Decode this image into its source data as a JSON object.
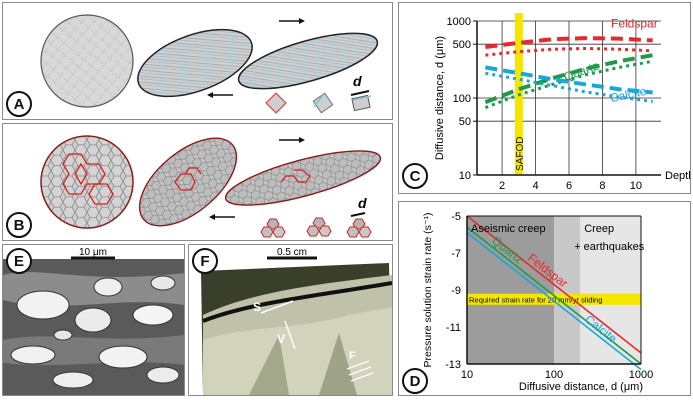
{
  "panels": {
    "A": {
      "letter": "A",
      "grain_size_label": "d"
    },
    "B": {
      "letter": "B",
      "grain_size_label": "d"
    },
    "C": {
      "letter": "C"
    },
    "D": {
      "letter": "D"
    },
    "E": {
      "letter": "E",
      "scale_label": "10 μm"
    },
    "F": {
      "letter": "F",
      "scale_label": "0.5 cm",
      "labels": [
        "S",
        "V",
        "F"
      ]
    }
  },
  "colors": {
    "feldspar": "#e8282b",
    "quartz": "#1f9a4a",
    "calcite": "#18a7d8",
    "safod": "#f5e600",
    "grain_boundary_highlight": "#d42020"
  },
  "chart_data": [
    {
      "type": "line",
      "panel": "C",
      "xlabel": "Depth (km)",
      "ylabel": "Diffusive distance, d (μm)",
      "xticks": [
        2,
        4,
        6,
        8,
        10
      ],
      "yticks": [
        10,
        50,
        100,
        500,
        1000
      ],
      "xlim": [
        0.5,
        11.5
      ],
      "ylim": [
        10,
        1000
      ],
      "yscale": "log",
      "marker": {
        "label": "SAFOD",
        "x": 3
      },
      "series": [
        {
          "name": "Feldspar",
          "style": "dashed",
          "x": [
            1,
            3,
            5,
            7,
            9,
            11
          ],
          "values": [
            460,
            520,
            580,
            600,
            590,
            560
          ]
        },
        {
          "name": "Feldspar",
          "style": "dotted",
          "x": [
            1,
            3,
            5,
            7,
            9,
            11
          ],
          "values": [
            360,
            400,
            430,
            440,
            430,
            410
          ]
        },
        {
          "name": "Quartz",
          "style": "dashed",
          "x": [
            1,
            3,
            5,
            7,
            9,
            11
          ],
          "values": [
            88,
            130,
            180,
            240,
            300,
            360
          ]
        },
        {
          "name": "Quartz",
          "style": "dotted",
          "x": [
            1,
            3,
            5,
            7,
            9,
            11
          ],
          "values": [
            75,
            110,
            150,
            200,
            250,
            300
          ]
        },
        {
          "name": "Calcite",
          "style": "dashed",
          "x": [
            1,
            3,
            5,
            7,
            9,
            11
          ],
          "values": [
            250,
            210,
            175,
            150,
            130,
            118
          ]
        },
        {
          "name": "Calcite",
          "style": "dotted",
          "x": [
            1,
            3,
            5,
            7,
            9,
            11
          ],
          "values": [
            210,
            175,
            145,
            120,
            103,
            90
          ]
        }
      ]
    },
    {
      "type": "line",
      "panel": "D",
      "xlabel": "Diffusive distance, d (μm)",
      "ylabel": "Pressure solution strain rate (s⁻¹)",
      "xscale": "log",
      "xticks": [
        10,
        100,
        1000
      ],
      "yticks": [
        -5,
        -7,
        -9,
        -11,
        -13
      ],
      "xlim": [
        10,
        1000
      ],
      "ylim": [
        -13,
        -5
      ],
      "regions": [
        {
          "label": "Aseismic creep",
          "x": [
            10,
            100
          ]
        },
        {
          "label": "Creep",
          "label2": "+ earthquakes",
          "x": [
            200,
            1000
          ]
        }
      ],
      "band_label": "Required strain rate for 20 mm/yr sliding",
      "band": [
        -9.2,
        -9.8
      ],
      "series": [
        {
          "name": "Feldspar",
          "x": [
            10,
            1000
          ],
          "values": [
            -5.0,
            -12.4
          ]
        },
        {
          "name": "Quartz",
          "x": [
            10,
            1000
          ],
          "values": [
            -5.6,
            -13.0
          ]
        },
        {
          "name": "Calcite",
          "x": [
            10,
            1000
          ],
          "values": [
            -5.9,
            -13.3
          ]
        }
      ]
    }
  ]
}
